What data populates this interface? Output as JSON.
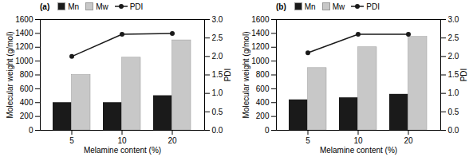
{
  "chart_data": [
    {
      "type": "bar",
      "title": "(a)",
      "categories": [
        "5",
        "10",
        "20"
      ],
      "xlabel": "Melamine content (%)",
      "ylabel": "Molecular weight (g/mol)",
      "y2label": "PDI",
      "series": [
        {
          "name": "Mn",
          "type": "bar",
          "color": "#1a1a1a",
          "values": [
            400,
            400,
            500
          ]
        },
        {
          "name": "Mw",
          "type": "bar",
          "color": "#c8c8c8",
          "values": [
            800,
            1050,
            1300
          ]
        },
        {
          "name": "PDI",
          "type": "line",
          "marker": "circle",
          "axis": "y2",
          "color": "#1a1a1a",
          "values": [
            2.0,
            2.6,
            2.62
          ]
        }
      ],
      "ylim": [
        0,
        1600
      ],
      "yticks": [
        0,
        200,
        400,
        600,
        800,
        1000,
        1200,
        1400,
        1600
      ],
      "y2lim": [
        0.0,
        3.0
      ],
      "y2ticks": [
        {
          "value": 0,
          "label": "0.0"
        },
        0.5,
        {
          "value": 1,
          "label": "1.0"
        },
        1.5,
        {
          "value": 2,
          "label": "2.0"
        },
        2.5,
        {
          "value": 3,
          "label": "3.0"
        }
      ],
      "grid": false,
      "legend": "top"
    },
    {
      "type": "bar",
      "title": "(b)",
      "categories": [
        "5",
        "10",
        "20"
      ],
      "xlabel": "Melamine content (%)",
      "ylabel": "Molecular weight (g/mol)",
      "y2label": "PDI",
      "series": [
        {
          "name": "Mn",
          "type": "bar",
          "color": "#1a1a1a",
          "values": [
            440,
            470,
            520
          ]
        },
        {
          "name": "Mw",
          "type": "bar",
          "color": "#c8c8c8",
          "values": [
            900,
            1200,
            1350
          ]
        },
        {
          "name": "PDI",
          "type": "line",
          "marker": "circle",
          "axis": "y2",
          "color": "#1a1a1a",
          "values": [
            2.1,
            2.6,
            2.6
          ]
        }
      ],
      "ylim": [
        0,
        1600
      ],
      "yticks": [
        0,
        200,
        400,
        600,
        800,
        1000,
        1200,
        1400,
        1600
      ],
      "y2lim": [
        0.0,
        3.0
      ],
      "y2ticks": [
        {
          "value": 0,
          "label": "0.0"
        },
        0.5,
        {
          "value": 1,
          "label": "1.0"
        },
        1.5,
        {
          "value": 2,
          "label": "2.0"
        },
        2.5,
        {
          "value": 3,
          "label": "3.0"
        }
      ],
      "grid": false,
      "legend": "top"
    }
  ]
}
